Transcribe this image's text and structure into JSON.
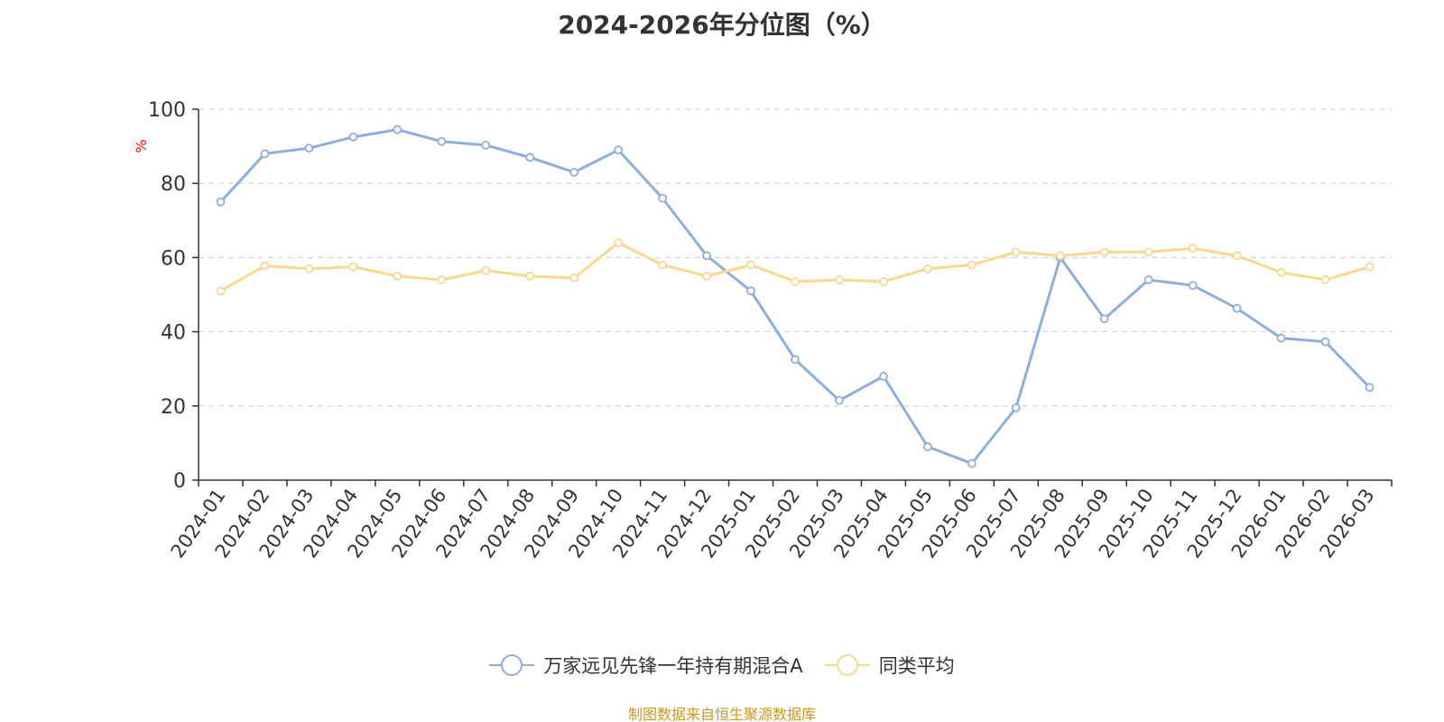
{
  "chart_data": {
    "type": "line",
    "title": "2024-2026年分位图（%）",
    "ylabel": "%",
    "xlabel": "",
    "ylim": [
      0,
      100
    ],
    "yticks": [
      0,
      20,
      40,
      60,
      80,
      100
    ],
    "grid": true,
    "legend_position": "bottom-center",
    "categories": [
      "2024-01",
      "2024-02",
      "2024-03",
      "2024-04",
      "2024-05",
      "2024-06",
      "2024-07",
      "2024-08",
      "2024-09",
      "2024-10",
      "2024-11",
      "2024-12",
      "2025-01",
      "2025-02",
      "2025-03",
      "2025-04",
      "2025-05",
      "2025-06",
      "2025-07",
      "2025-08",
      "2025-09",
      "2025-10",
      "2025-11",
      "2025-12",
      "2026-01",
      "2026-02",
      "2026-03"
    ],
    "series": [
      {
        "name": "万家远见先锋一年持有期混合A",
        "color": "#8eaedb",
        "values": [
          75,
          88,
          89.5,
          92.5,
          94.5,
          91.3,
          90.3,
          87,
          83,
          89,
          76,
          60.5,
          51,
          32.5,
          21.5,
          28,
          9,
          4.5,
          19.5,
          60,
          43.5,
          54,
          52.5,
          46.3,
          38.3,
          37.3,
          25
        ]
      },
      {
        "name": "同类平均",
        "color": "#fad88f",
        "values": [
          51,
          57.8,
          57,
          57.5,
          55,
          54,
          56.5,
          55,
          54.5,
          64,
          58,
          55,
          58,
          53.5,
          54,
          53.5,
          57,
          58,
          61.5,
          60.5,
          61.5,
          61.5,
          62.5,
          60.5,
          56,
          54,
          57.5
        ]
      }
    ]
  },
  "source_note": {
    "text": "制图数据来自恒生聚源数据库",
    "color": "#c9971c"
  },
  "axis_color": "#333333",
  "grid_color": "#cccccc",
  "ylabel_color": "#ff0000"
}
